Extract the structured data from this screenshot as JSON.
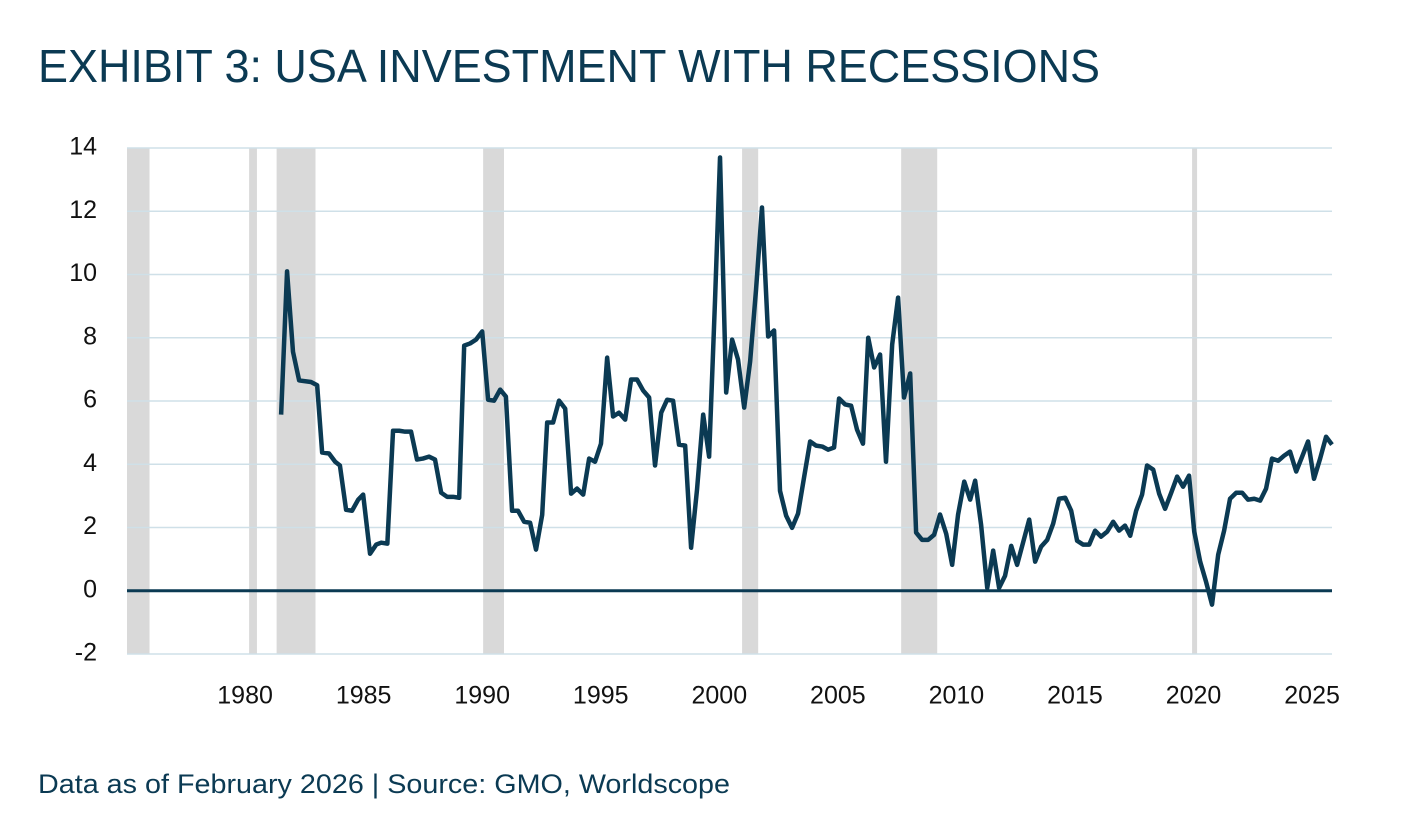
{
  "chart_data": {
    "type": "line",
    "title": "EXHIBIT 3: USA INVESTMENT WITH RECESSIONS",
    "footnote": "Data as of February 2026 | Source: GMO, Worldscope",
    "color": "#0b3a53",
    "shade_color": "#d9d9d9",
    "grid": true,
    "xlim": [
      1975.02,
      2025.84
    ],
    "ylim": [
      -2,
      14
    ],
    "xticks": [
      1980,
      1985,
      1990,
      1995,
      2000,
      2005,
      2010,
      2015,
      2020,
      2025
    ],
    "yticks": [
      -2,
      0,
      2,
      4,
      6,
      8,
      10,
      12,
      14
    ],
    "recessions": [
      [
        1975.02,
        1975.97
      ],
      [
        1980.17,
        1980.5
      ],
      [
        1981.33,
        1982.97
      ],
      [
        1990.04,
        1990.92
      ],
      [
        2000.96,
        2001.64
      ],
      [
        2007.67,
        2009.19
      ],
      [
        2019.94,
        2020.15
      ]
    ],
    "x": [
      1981.52,
      1981.77,
      1982.02,
      1982.28,
      1982.78,
      1983.04,
      1983.25,
      1983.54,
      1983.8,
      1984.0,
      1984.26,
      1984.51,
      1984.77,
      1984.98,
      1985.27,
      1985.53,
      1985.74,
      1986.0,
      1986.24,
      1986.5,
      1986.75,
      1987.0,
      1987.25,
      1987.5,
      1987.76,
      1988.01,
      1988.27,
      1988.52,
      1988.77,
      1989.03,
      1989.24,
      1989.49,
      1989.74,
      1990.0,
      1990.25,
      1990.5,
      1990.76,
      1991.0,
      1991.26,
      1991.51,
      1991.77,
      1992.02,
      1992.27,
      1992.53,
      1992.74,
      1992.99,
      1993.24,
      1993.5,
      1993.75,
      1994.0,
      1994.26,
      1994.51,
      1994.76,
      1995.01,
      1995.27,
      1995.52,
      1995.77,
      1996.03,
      1996.28,
      1996.53,
      1996.79,
      1997.04,
      1997.29,
      1997.55,
      1997.8,
      1998.05,
      1998.3,
      1998.56,
      1998.81,
      1999.06,
      1999.32,
      1999.57,
      1999.82,
      2000.03,
      2000.29,
      2000.54,
      2000.79,
      2001.05,
      2001.3,
      2001.55,
      2001.8,
      2002.06,
      2002.31,
      2002.56,
      2002.82,
      2003.07,
      2003.32,
      2003.58,
      2003.83,
      2004.08,
      2004.34,
      2004.59,
      2004.84,
      2005.05,
      2005.31,
      2005.56,
      2005.81,
      2006.06,
      2006.28,
      2006.53,
      2006.78,
      2007.03,
      2007.29,
      2007.54,
      2007.79,
      2008.05,
      2008.3,
      2008.55,
      2008.81,
      2009.06,
      2009.31,
      2009.57,
      2009.82,
      2010.07,
      2010.33,
      2010.58,
      2010.79,
      2011.04,
      2011.3,
      2011.55,
      2011.8,
      2012.05,
      2012.31,
      2012.56,
      2012.81,
      2013.07,
      2013.32,
      2013.57,
      2013.83,
      2014.08,
      2014.33,
      2014.59,
      2014.84,
      2015.09,
      2015.34,
      2015.6,
      2015.85,
      2016.1,
      2016.36,
      2016.61,
      2016.86,
      2017.11,
      2017.33,
      2017.58,
      2017.83,
      2018.04,
      2018.3,
      2018.55,
      2018.8,
      2019.06,
      2019.31,
      2019.56,
      2019.81,
      2020.03,
      2020.28,
      2020.53,
      2020.78,
      2021.04,
      2021.29,
      2021.54,
      2021.8,
      2022.05,
      2022.3,
      2022.56,
      2022.81,
      2023.06,
      2023.31,
      2023.57,
      2023.82,
      2024.07,
      2024.33,
      2024.58,
      2024.83,
      2025.08,
      2025.34,
      2025.59,
      2025.84
    ],
    "values": [
      5.57,
      10.1,
      7.56,
      6.65,
      6.6,
      6.5,
      4.37,
      4.34,
      4.08,
      3.96,
      2.56,
      2.53,
      2.88,
      3.04,
      1.17,
      1.46,
      1.52,
      1.49,
      5.06,
      5.06,
      5.03,
      5.03,
      4.15,
      4.18,
      4.24,
      4.15,
      3.1,
      2.97,
      2.97,
      2.94,
      7.75,
      7.82,
      7.94,
      8.2,
      6.04,
      6.01,
      6.36,
      6.14,
      2.53,
      2.53,
      2.18,
      2.15,
      1.3,
      2.4,
      5.32,
      5.32,
      6.01,
      5.76,
      3.07,
      3.23,
      3.04,
      4.18,
      4.08,
      4.65,
      7.37,
      5.51,
      5.63,
      5.41,
      6.68,
      6.68,
      6.33,
      6.11,
      3.96,
      5.63,
      6.04,
      6.01,
      4.62,
      4.59,
      1.36,
      3.2,
      5.57,
      4.24,
      9.2,
      13.7,
      6.27,
      7.94,
      7.31,
      5.79,
      7.25,
      9.53,
      12.12,
      8.04,
      8.23,
      3.16,
      2.37,
      1.99,
      2.44,
      3.61,
      4.72,
      4.59,
      4.56,
      4.46,
      4.53,
      6.08,
      5.89,
      5.85,
      5.09,
      4.65,
      8.0,
      7.06,
      7.47,
      4.08,
      7.78,
      9.27,
      6.11,
      6.87,
      1.84,
      1.61,
      1.61,
      1.77,
      2.41,
      1.8,
      0.82,
      2.41,
      3.45,
      2.88,
      3.48,
      2.09,
      0.09,
      1.27,
      0.09,
      0.47,
      1.42,
      0.82,
      1.52,
      2.25,
      0.92,
      1.39,
      1.61,
      2.12,
      2.91,
      2.94,
      2.53,
      1.58,
      1.46,
      1.46,
      1.9,
      1.71,
      1.87,
      2.18,
      1.9,
      2.06,
      1.74,
      2.53,
      3.04,
      3.96,
      3.83,
      3.07,
      2.59,
      3.1,
      3.61,
      3.29,
      3.64,
      1.87,
      0.92,
      0.28,
      -0.44,
      1.14,
      1.9,
      2.91,
      3.1,
      3.1,
      2.88,
      2.91,
      2.85,
      3.23,
      4.18,
      4.11,
      4.27,
      4.4,
      3.77,
      4.24,
      4.72,
      3.54,
      4.18,
      4.87,
      4.62
    ]
  }
}
